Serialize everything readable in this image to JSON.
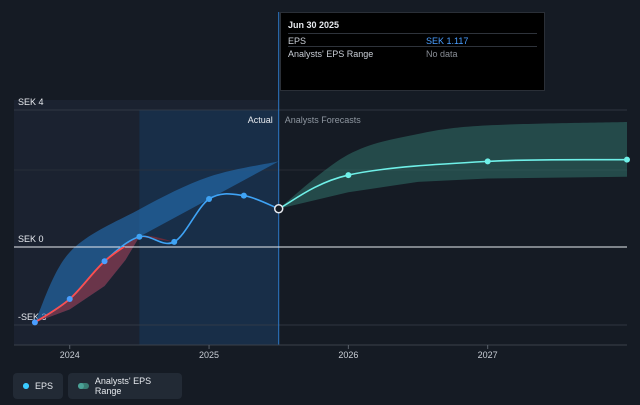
{
  "tooltip": {
    "date": "Jun 30 2025",
    "rows": [
      {
        "label": "EPS",
        "value": "SEK 1.117",
        "color": "#4a9eff"
      },
      {
        "label": "Analysts' EPS Range",
        "value": "No data",
        "color": "#8a8f97"
      }
    ]
  },
  "labels": {
    "actual": "Actual",
    "forecast": "Analysts Forecasts"
  },
  "legend": [
    {
      "label": "EPS",
      "color": "#2d9cff"
    },
    {
      "label": "Analysts' EPS Range",
      "color": "#3a7d74"
    }
  ],
  "colors": {
    "background": "#151b24",
    "eps_line": "#3fa3f5",
    "eps_negative": "#ff4d4d",
    "forecast_line": "#6ff0e8",
    "forecast_band": "#2f6b64",
    "actual_band": "#2572b8",
    "past_shade": "#1b2230",
    "highlight": "#15385c"
  },
  "chart_data": {
    "type": "line",
    "y_ticks": [
      {
        "value": 4,
        "label": "SEK 4"
      },
      {
        "value": 0,
        "label": "SEK 0"
      },
      {
        "value": -3,
        "label": "-SEK 3"
      }
    ],
    "x_ticks": [
      {
        "value": 2024.0,
        "label": "2024"
      },
      {
        "value": 2025.0,
        "label": "2025"
      },
      {
        "value": 2026.0,
        "label": "2026"
      },
      {
        "value": 2027.0,
        "label": "2027"
      }
    ],
    "ylim": [
      -3.5,
      4
    ],
    "xlim": [
      2023.6,
      2028.0
    ],
    "forecast_start": 2025.5,
    "highlight_start": 2024.5,
    "series": [
      {
        "name": "EPS",
        "type": "actual",
        "points": [
          {
            "x": 2023.75,
            "y": -2.9
          },
          {
            "x": 2024.0,
            "y": -2.0
          },
          {
            "x": 2024.25,
            "y": -0.55
          },
          {
            "x": 2024.5,
            "y": 0.3
          },
          {
            "x": 2024.75,
            "y": 0.15
          },
          {
            "x": 2025.0,
            "y": 1.4
          },
          {
            "x": 2025.25,
            "y": 1.5
          },
          {
            "x": 2025.5,
            "y": 1.117
          }
        ]
      },
      {
        "name": "EPS forecast",
        "type": "forecast",
        "points": [
          {
            "x": 2025.5,
            "y": 1.117
          },
          {
            "x": 2026.0,
            "y": 2.1
          },
          {
            "x": 2027.0,
            "y": 2.5
          },
          {
            "x": 2028.0,
            "y": 2.55
          }
        ]
      }
    ],
    "ranges": [
      {
        "name": "Analysts' EPS Range (actual)",
        "type": "actual",
        "upper": [
          {
            "x": 2023.75,
            "y": -2.9
          },
          {
            "x": 2024.0,
            "y": -0.2
          },
          {
            "x": 2024.5,
            "y": 1.1
          },
          {
            "x": 2025.0,
            "y": 2.05
          },
          {
            "x": 2025.5,
            "y": 2.5
          }
        ],
        "lower": [
          {
            "x": 2023.75,
            "y": -2.9
          },
          {
            "x": 2024.0,
            "y": -2.4
          },
          {
            "x": 2024.25,
            "y": -1.5
          },
          {
            "x": 2024.4,
            "y": -0.5
          },
          {
            "x": 2024.5,
            "y": 0.3
          }
        ]
      },
      {
        "name": "Analysts' EPS Range (forecast)",
        "type": "forecast",
        "upper": [
          {
            "x": 2025.5,
            "y": 1.117
          },
          {
            "x": 2026.0,
            "y": 2.7
          },
          {
            "x": 2026.5,
            "y": 3.3
          },
          {
            "x": 2027.0,
            "y": 3.55
          },
          {
            "x": 2028.0,
            "y": 3.65
          }
        ],
        "lower": [
          {
            "x": 2025.5,
            "y": 1.117
          },
          {
            "x": 2026.0,
            "y": 1.6
          },
          {
            "x": 2026.5,
            "y": 1.9
          },
          {
            "x": 2027.0,
            "y": 2.0
          },
          {
            "x": 2028.0,
            "y": 2.05
          }
        ]
      }
    ]
  }
}
